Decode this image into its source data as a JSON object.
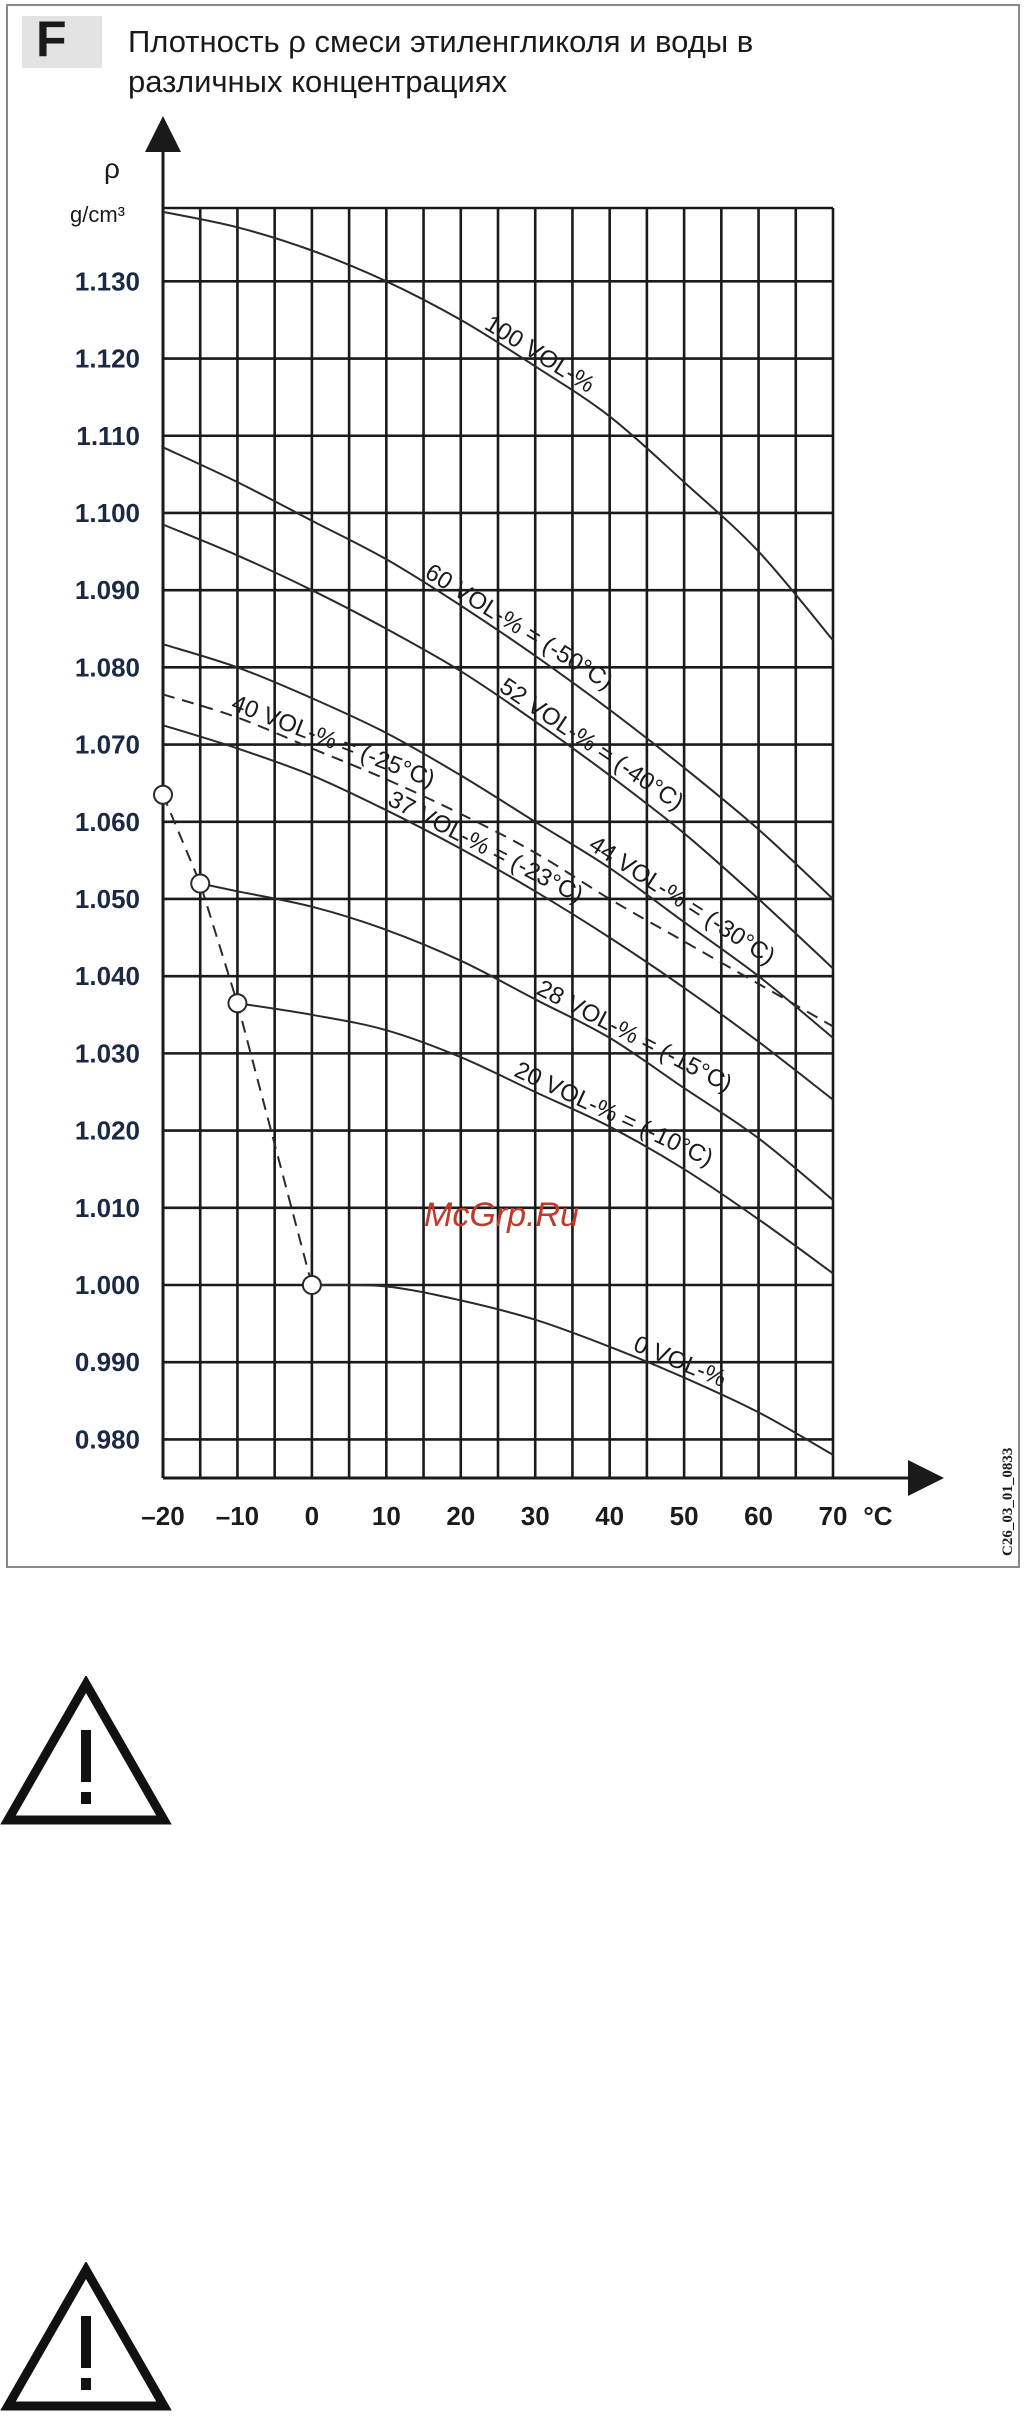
{
  "figure": {
    "letter": "F",
    "title": "Плотность ρ смеси этиленгликоля и воды в различных концентрациях"
  },
  "watermark": "McGrp.Ru",
  "code": "C26_03_01_0833",
  "warning_icons": [
    "warning-triangle-icon",
    "warning-triangle-icon"
  ],
  "colors": {
    "watermark": "#c0392b",
    "grid": "#1a1a1a",
    "curve": "#2a2a2a"
  },
  "chart_data": {
    "type": "line",
    "xlabel": "°C",
    "ylabel": "ρ",
    "yunit": "g/cm³",
    "xlim": [
      -20,
      70
    ],
    "ylim": [
      0.975,
      1.1395
    ],
    "xticks": [
      {
        "value": -20,
        "label": "–20"
      },
      {
        "value": -10,
        "label": "–10"
      },
      {
        "value": 0,
        "label": "0"
      },
      {
        "value": 10,
        "label": "10"
      },
      {
        "value": 20,
        "label": "20"
      },
      {
        "value": 30,
        "label": "30"
      },
      {
        "value": 40,
        "label": "40"
      },
      {
        "value": 50,
        "label": "50"
      },
      {
        "value": 60,
        "label": "60"
      },
      {
        "value": 70,
        "label": "70"
      }
    ],
    "yticks": [
      {
        "value": 0.98,
        "label": "0.980"
      },
      {
        "value": 0.99,
        "label": "0.990"
      },
      {
        "value": 1.0,
        "label": "1.000"
      },
      {
        "value": 1.01,
        "label": "1.010"
      },
      {
        "value": 1.02,
        "label": "1.020"
      },
      {
        "value": 1.03,
        "label": "1.030"
      },
      {
        "value": 1.04,
        "label": "1.040"
      },
      {
        "value": 1.05,
        "label": "1.050"
      },
      {
        "value": 1.06,
        "label": "1.060"
      },
      {
        "value": 1.07,
        "label": "1.070"
      },
      {
        "value": 1.08,
        "label": "1.080"
      },
      {
        "value": 1.09,
        "label": "1.090"
      },
      {
        "value": 1.1,
        "label": "1.100"
      },
      {
        "value": 1.11,
        "label": "1.110"
      },
      {
        "value": 1.12,
        "label": "1.120"
      },
      {
        "value": 1.13,
        "label": "1.130"
      }
    ],
    "grid": true,
    "series": [
      {
        "name": "100 VOL-%",
        "style": "solid",
        "x": [
          -20,
          -10,
          0,
          10,
          20,
          30,
          40,
          50,
          60,
          70
        ],
        "y": [
          1.139,
          1.137,
          1.134,
          1.13,
          1.125,
          1.119,
          1.1125,
          1.104,
          1.095,
          1.0835
        ],
        "label_at": 23
      },
      {
        "name": "60 VOL-% = (-50°C)",
        "style": "solid",
        "x": [
          -20,
          -10,
          0,
          10,
          20,
          30,
          40,
          50,
          60,
          70
        ],
        "y": [
          1.1085,
          1.104,
          1.099,
          1.094,
          1.088,
          1.0815,
          1.0745,
          1.067,
          1.059,
          1.05
        ],
        "label_at": 15
      },
      {
        "name": "52 VOL-% = (-40°C)",
        "style": "solid",
        "x": [
          -20,
          -10,
          0,
          10,
          20,
          30,
          40,
          50,
          60,
          70
        ],
        "y": [
          1.0985,
          1.0945,
          1.09,
          1.085,
          1.0795,
          1.073,
          1.066,
          1.0585,
          1.05,
          1.041
        ],
        "label_at": 25
      },
      {
        "name": "44 VOL-% = (-30°C)",
        "style": "solid",
        "x": [
          -20,
          -10,
          0,
          10,
          20,
          30,
          40,
          50,
          60,
          70
        ],
        "y": [
          1.083,
          1.08,
          1.076,
          1.0715,
          1.066,
          1.06,
          1.054,
          1.047,
          1.04,
          1.032
        ],
        "label_at": 37
      },
      {
        "name": "40 VOL-% = (-25°C)",
        "style": "dashed",
        "x": [
          -20,
          -10,
          0,
          10,
          20,
          30,
          40,
          50,
          60,
          70
        ],
        "y": [
          1.0765,
          1.0735,
          1.0695,
          1.0655,
          1.061,
          1.056,
          1.05,
          1.0445,
          1.039,
          1.0335
        ],
        "label_at": -11
      },
      {
        "name": "37 VOL-% = (-23°C)",
        "style": "solid",
        "x": [
          -20,
          -10,
          0,
          10,
          20,
          30,
          40,
          50,
          60,
          70
        ],
        "y": [
          1.0725,
          1.0695,
          1.066,
          1.0615,
          1.0565,
          1.051,
          1.045,
          1.0385,
          1.0315,
          1.024
        ],
        "label_at": 10
      },
      {
        "name": "28 VOL-% = (-15°C)",
        "style": "solid",
        "x": [
          -15,
          -10,
          0,
          10,
          20,
          30,
          40,
          50,
          60,
          70
        ],
        "y": [
          1.052,
          1.051,
          1.049,
          1.046,
          1.042,
          1.037,
          1.032,
          1.0255,
          1.019,
          1.011
        ],
        "label_at": 30
      },
      {
        "name": "20 VOL-% = (-10°C)",
        "style": "solid",
        "x": [
          -10,
          0,
          10,
          20,
          30,
          40,
          50,
          60,
          70
        ],
        "y": [
          1.0365,
          1.035,
          1.033,
          1.0295,
          1.025,
          1.0205,
          1.015,
          1.0085,
          1.0015
        ],
        "label_at": 27
      },
      {
        "name": "0 VOL-%",
        "style": "solid",
        "x": [
          0,
          10,
          20,
          30,
          40,
          50,
          60,
          70
        ],
        "y": [
          1.0,
          0.9998,
          0.998,
          0.9955,
          0.992,
          0.988,
          0.9835,
          0.978
        ],
        "label_at": 43
      },
      {
        "name": "",
        "style": "dashed",
        "markers": "circle",
        "x": [
          -20,
          -15,
          -10,
          0
        ],
        "y": [
          1.0635,
          1.052,
          1.0365,
          1.0
        ]
      }
    ]
  }
}
